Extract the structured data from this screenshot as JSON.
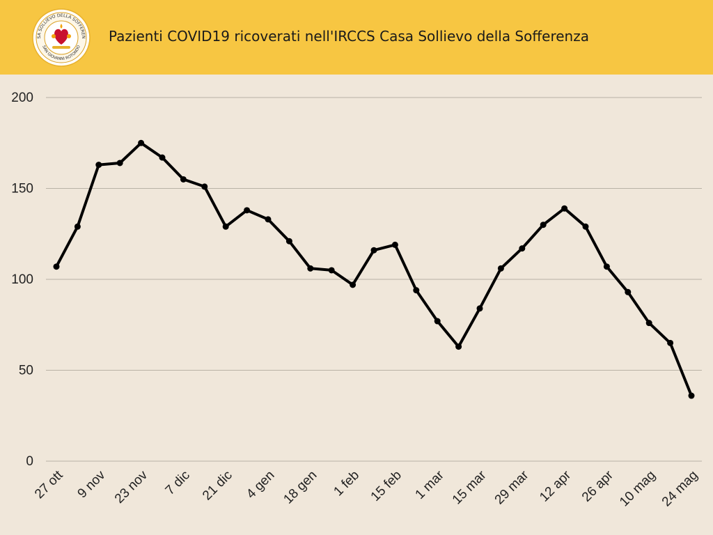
{
  "header": {
    "title": "Pazienti COVID19 ricoverati nell'IRCCS Casa Sollievo della Sofferenza",
    "logo": {
      "ring_text_top": "CASA SOLLIEVO DELLA SOFFERENZA",
      "ring_text_bottom": "SAN GIOVANNI ROTONDO"
    },
    "background_color": "#f7c642"
  },
  "chart_data": {
    "type": "line",
    "title": "Pazienti COVID19 ricoverati nell'IRCCS Casa Sollievo della Sofferenza",
    "xlabel": "",
    "ylabel": "",
    "ylim": [
      0,
      200
    ],
    "yticks": [
      0,
      50,
      100,
      150,
      200
    ],
    "grid": true,
    "legend": "none",
    "x_tick_labels": [
      "27 ott",
      "9 nov",
      "23 nov",
      "7 dic",
      "21 dic",
      "4 gen",
      "18 gen",
      "1 feb",
      "15 feb",
      "1 mar",
      "15 mar",
      "29 mar",
      "12 apr",
      "26 apr",
      "10 mag",
      "24 mag"
    ],
    "values": [
      107,
      129,
      163,
      164,
      175,
      167,
      155,
      151,
      129,
      138,
      133,
      121,
      106,
      105,
      97,
      116,
      119,
      94,
      77,
      63,
      84,
      106,
      117,
      130,
      139,
      129,
      107,
      93,
      76,
      65,
      36
    ],
    "line_color": "#000000",
    "background_color": "#f0e7da",
    "grid_color": "#b9b2a6"
  }
}
